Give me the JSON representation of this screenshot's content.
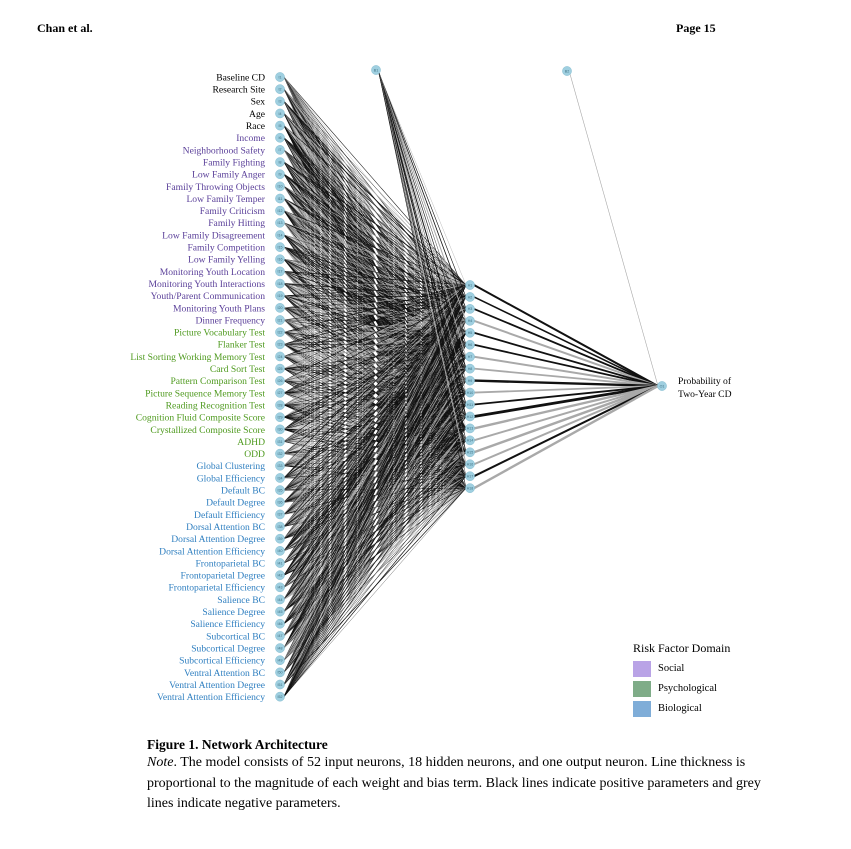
{
  "header": {
    "left": "Chan et al.",
    "right": "Page 15"
  },
  "colors": {
    "social": "#5a3f99",
    "psychological": "#4f9a1f",
    "biological": "#2f7fc0",
    "demographic": "#000000",
    "node_fill": "#9fcfe0",
    "positive_line": "#111111",
    "negative_line": "#a9a9a9",
    "legend_social": "#b9a3e6",
    "legend_psychological": "#7fac88",
    "legend_biological": "#7fadd8"
  },
  "inputs": [
    {
      "label": "Baseline CD",
      "id": "I1",
      "domain": "demographic"
    },
    {
      "label": "Research Site",
      "id": "I2",
      "domain": "demographic"
    },
    {
      "label": "Sex",
      "id": "I3",
      "domain": "demographic"
    },
    {
      "label": "Age",
      "id": "I4",
      "domain": "demographic"
    },
    {
      "label": "Race",
      "id": "I5",
      "domain": "demographic"
    },
    {
      "label": "Income",
      "id": "I6",
      "domain": "social"
    },
    {
      "label": "Neighborhood Safety",
      "id": "I7",
      "domain": "social"
    },
    {
      "label": "Family Fighting",
      "id": "I8",
      "domain": "social"
    },
    {
      "label": "Low Family Anger",
      "id": "I9",
      "domain": "social"
    },
    {
      "label": "Family Throwing Objects",
      "id": "I10",
      "domain": "social"
    },
    {
      "label": "Low Family Temper",
      "id": "I11",
      "domain": "social"
    },
    {
      "label": "Family Criticism",
      "id": "I12",
      "domain": "social"
    },
    {
      "label": "Family Hitting",
      "id": "I13",
      "domain": "social"
    },
    {
      "label": "Low Family Disagreement",
      "id": "I14",
      "domain": "social"
    },
    {
      "label": "Family Competition",
      "id": "I15",
      "domain": "social"
    },
    {
      "label": "Low Family Yelling",
      "id": "I16",
      "domain": "social"
    },
    {
      "label": "Monitoring Youth Location",
      "id": "I17",
      "domain": "social"
    },
    {
      "label": "Monitoring Youth Interactions",
      "id": "I18",
      "domain": "social"
    },
    {
      "label": "Youth/Parent Communication",
      "id": "I19",
      "domain": "social"
    },
    {
      "label": "Monitoring Youth Plans",
      "id": "I20",
      "domain": "social"
    },
    {
      "label": "Dinner Frequency",
      "id": "I21",
      "domain": "social"
    },
    {
      "label": "Picture Vocabulary Test",
      "id": "I22",
      "domain": "psychological"
    },
    {
      "label": "Flanker Test",
      "id": "I23",
      "domain": "psychological"
    },
    {
      "label": "List Sorting Working Memory Test",
      "id": "I24",
      "domain": "psychological"
    },
    {
      "label": "Card Sort Test",
      "id": "I25",
      "domain": "psychological"
    },
    {
      "label": "Pattern Comparison Test",
      "id": "I26",
      "domain": "psychological"
    },
    {
      "label": "Picture Sequence Memory Test",
      "id": "I27",
      "domain": "psychological"
    },
    {
      "label": "Reading Recognition Test",
      "id": "I28",
      "domain": "psychological"
    },
    {
      "label": "Cognition Fluid Composite Score",
      "id": "I29",
      "domain": "psychological"
    },
    {
      "label": "Crystallized Composite Score",
      "id": "I30",
      "domain": "psychological"
    },
    {
      "label": "ADHD",
      "id": "I31",
      "domain": "psychological"
    },
    {
      "label": "ODD",
      "id": "I32",
      "domain": "psychological"
    },
    {
      "label": "Global Clustering",
      "id": "I33",
      "domain": "biological"
    },
    {
      "label": "Global Efficiency",
      "id": "I34",
      "domain": "biological"
    },
    {
      "label": "Default BC",
      "id": "I35",
      "domain": "biological"
    },
    {
      "label": "Default Degree",
      "id": "I36",
      "domain": "biological"
    },
    {
      "label": "Default Efficiency",
      "id": "I37",
      "domain": "biological"
    },
    {
      "label": "Dorsal Attention BC",
      "id": "I38",
      "domain": "biological"
    },
    {
      "label": "Dorsal Attention Degree",
      "id": "I39",
      "domain": "biological"
    },
    {
      "label": "Dorsal Attention Efficiency",
      "id": "I40",
      "domain": "biological"
    },
    {
      "label": "Frontoparietal BC",
      "id": "I41",
      "domain": "biological"
    },
    {
      "label": "Frontoparietal Degree",
      "id": "I42",
      "domain": "biological"
    },
    {
      "label": "Frontoparietal Efficiency",
      "id": "I43",
      "domain": "biological"
    },
    {
      "label": "Salience BC",
      "id": "I44",
      "domain": "biological"
    },
    {
      "label": "Salience Degree",
      "id": "I45",
      "domain": "biological"
    },
    {
      "label": "Salience Efficiency",
      "id": "I46",
      "domain": "biological"
    },
    {
      "label": "Subcortical BC",
      "id": "I47",
      "domain": "biological"
    },
    {
      "label": "Subcortical Degree",
      "id": "I48",
      "domain": "biological"
    },
    {
      "label": "Subcortical Efficiency",
      "id": "I49",
      "domain": "biological"
    },
    {
      "label": "Ventral Attention BC",
      "id": "I50",
      "domain": "biological"
    },
    {
      "label": "Ventral Attention Degree",
      "id": "I51",
      "domain": "biological"
    },
    {
      "label": "Ventral Attention Efficiency",
      "id": "I52",
      "domain": "biological"
    }
  ],
  "hidden": [
    "H1",
    "H2",
    "H3",
    "H4",
    "H5",
    "H6",
    "H7",
    "H8",
    "H9",
    "H10",
    "H11",
    "H12",
    "H13",
    "H14",
    "H15",
    "H16",
    "H17",
    "H18"
  ],
  "bias_nodes": [
    "B1",
    "B2"
  ],
  "output": {
    "id": "O1",
    "label_line1": "Probability of",
    "label_line2": "Two-Year CD"
  },
  "hidden_to_output": [
    {
      "sign": "positive",
      "weight": 0.5
    },
    {
      "sign": "positive",
      "weight": 0.4
    },
    {
      "sign": "positive",
      "weight": 0.45
    },
    {
      "sign": "negative",
      "weight": 0.5
    },
    {
      "sign": "positive",
      "weight": 0.45
    },
    {
      "sign": "positive",
      "weight": 0.45
    },
    {
      "sign": "negative",
      "weight": 0.5
    },
    {
      "sign": "negative",
      "weight": 0.45
    },
    {
      "sign": "positive",
      "weight": 0.6
    },
    {
      "sign": "negative",
      "weight": 0.45
    },
    {
      "sign": "positive",
      "weight": 0.45
    },
    {
      "sign": "positive",
      "weight": 0.7
    },
    {
      "sign": "negative",
      "weight": 0.6
    },
    {
      "sign": "negative",
      "weight": 0.5
    },
    {
      "sign": "negative",
      "weight": 0.6
    },
    {
      "sign": "negative",
      "weight": 0.5
    },
    {
      "sign": "positive",
      "weight": 0.5
    },
    {
      "sign": "negative",
      "weight": 0.6
    }
  ],
  "legend": {
    "title": "Risk Factor Domain",
    "items": [
      {
        "label": "Social",
        "key": "legend_social"
      },
      {
        "label": "Psychological",
        "key": "legend_psychological"
      },
      {
        "label": "Biological",
        "key": "legend_biological"
      }
    ]
  },
  "caption": {
    "title": "Figure 1. Network Architecture",
    "note_label": "Note",
    "note_text": ". The model consists of 52 input neurons, 18 hidden neurons, and one output neuron. Line thickness is proportional to the magnitude of each weight and bias term. Black lines indicate positive parameters and grey lines indicate negative parameters."
  }
}
